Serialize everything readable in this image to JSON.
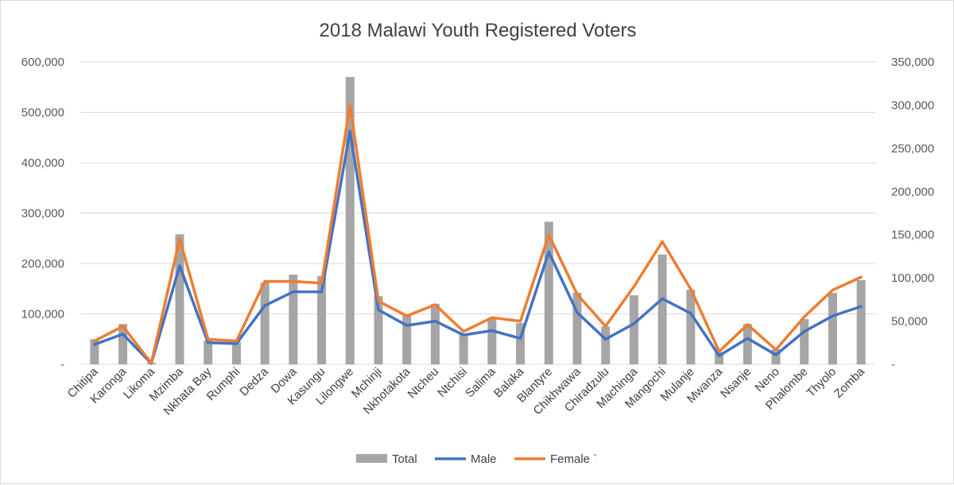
{
  "chart_data": {
    "type": "bar",
    "title": "2018 Malawi Youth Registered Voters",
    "categories": [
      "Chitipa",
      "Karonga",
      "Likoma",
      "Mzimba",
      "Nkhata Bay",
      "Rumphi",
      "Dedza",
      "Dowa",
      "Kasungu",
      "Lilongwe",
      "Mchinji",
      "Nkhotakota",
      "Ntcheu",
      "Ntchisi",
      "Salima",
      "Balaka",
      "Blantyre",
      "Chikhwawa",
      "Chiradzulu",
      "Machinga",
      "Mangochi",
      "Mulanje",
      "Mwanza",
      "Nsanje",
      "Neno",
      "Phalombe",
      "Thyolo",
      "Zomba"
    ],
    "series": [
      {
        "name": "Total",
        "kind": "bar",
        "axis": "left",
        "color": "#a5a5a5",
        "values": [
          50000,
          80000,
          3000,
          258000,
          47000,
          45000,
          162000,
          178000,
          175000,
          570000,
          135000,
          100000,
          120000,
          60000,
          90000,
          82000,
          283000,
          142000,
          75000,
          137000,
          218000,
          148000,
          25000,
          80000,
          30000,
          90000,
          142000,
          167000
        ]
      },
      {
        "name": "Male",
        "kind": "line",
        "axis": "right",
        "color": "#4472c4",
        "values": [
          23000,
          35000,
          1000,
          114000,
          25000,
          24000,
          68000,
          84000,
          84000,
          270000,
          63000,
          45000,
          50000,
          34000,
          39000,
          30000,
          130000,
          60000,
          29000,
          47000,
          76000,
          59000,
          10000,
          30000,
          11000,
          38000,
          56000,
          67000
        ]
      },
      {
        "name": "Female `",
        "kind": "line",
        "axis": "right",
        "color": "#ed7d31",
        "values": [
          27000,
          44000,
          1500,
          145000,
          29000,
          27000,
          96000,
          96000,
          94000,
          300000,
          73000,
          56000,
          69000,
          38000,
          54000,
          50000,
          150000,
          81000,
          44000,
          90000,
          142000,
          87000,
          15000,
          46000,
          17000,
          55000,
          86000,
          101000
        ]
      }
    ],
    "y_left": {
      "min": 0,
      "max": 600000,
      "step": 100000,
      "ticks": [
        "-",
        "100,000",
        "200,000",
        "300,000",
        "400,000",
        "500,000",
        "600,000"
      ]
    },
    "y_right": {
      "min": 0,
      "max": 350000,
      "step": 50000,
      "ticks": [
        "-",
        "50,000",
        "100,000",
        "150,000",
        "200,000",
        "250,000",
        "300,000",
        "350,000"
      ]
    },
    "grid": true,
    "legend_position": "bottom"
  }
}
